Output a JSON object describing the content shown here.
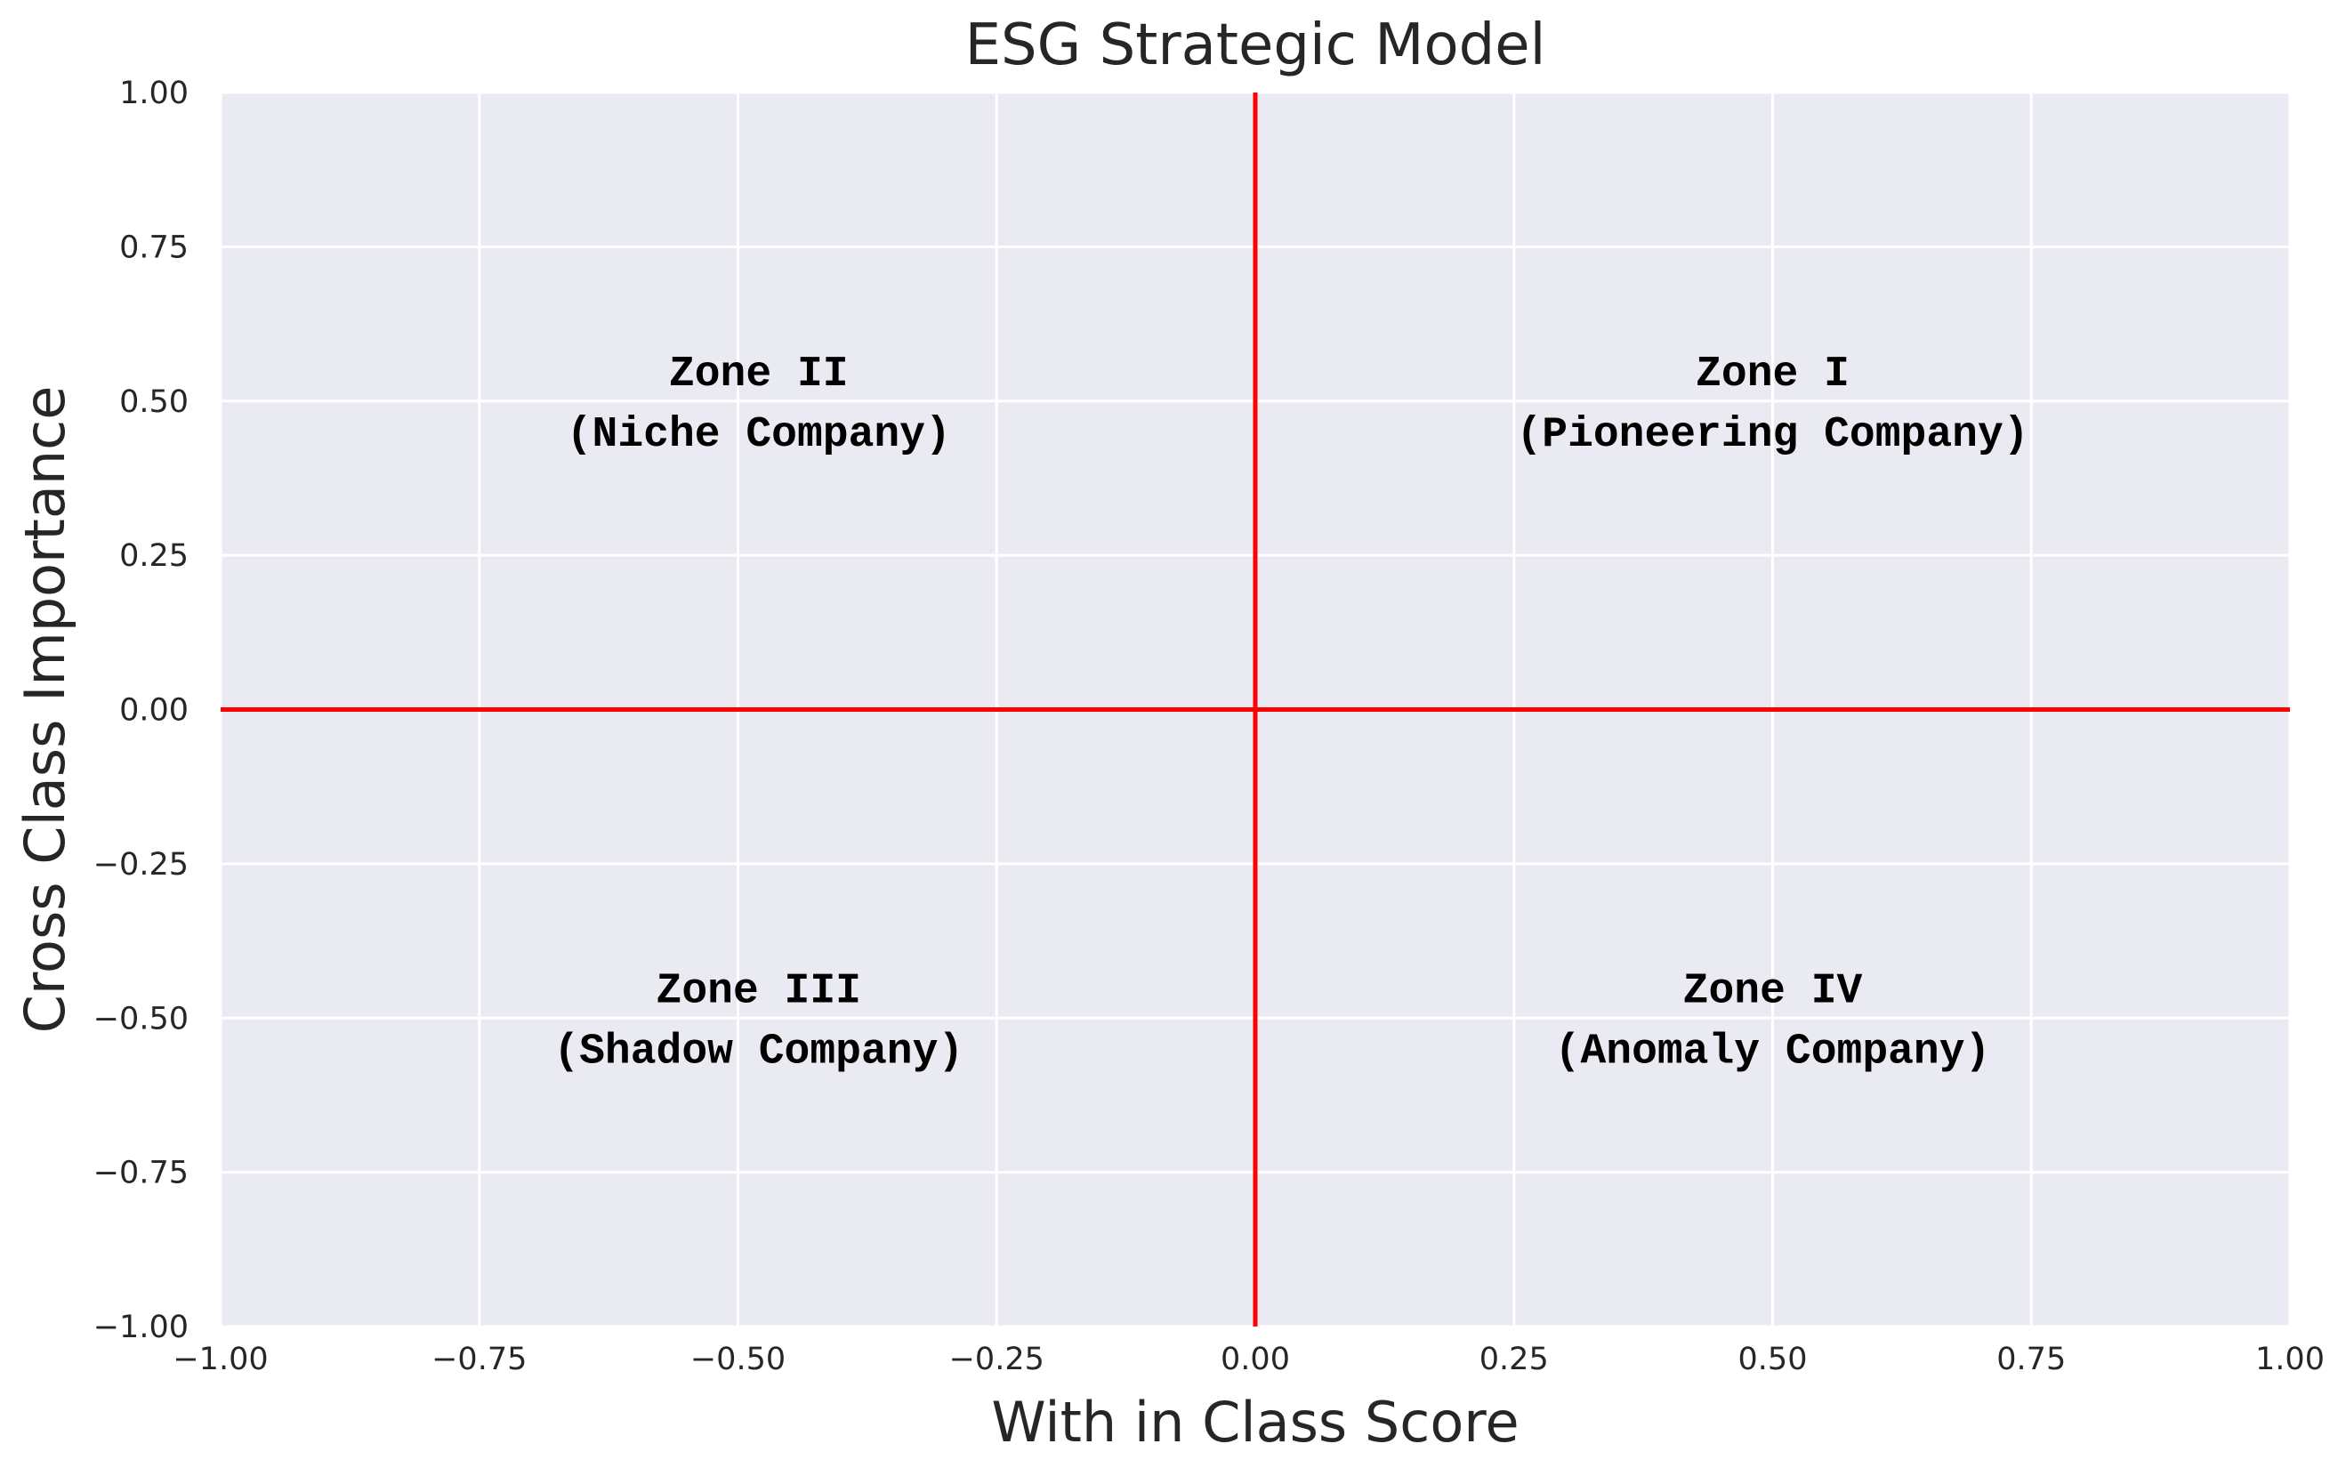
{
  "chart_data": {
    "type": "scatter",
    "title": "ESG Strategic Model",
    "xlabel": "With in Class Score",
    "ylabel": "Cross Class Importance",
    "xlim": [
      -1.0,
      1.0
    ],
    "ylim": [
      -1.0,
      1.0
    ],
    "xticks": [
      -1.0,
      -0.75,
      -0.5,
      -0.25,
      0.0,
      0.25,
      0.5,
      0.75,
      1.0
    ],
    "yticks": [
      -1.0,
      -0.75,
      -0.5,
      -0.25,
      0.0,
      0.25,
      0.5,
      0.75,
      1.0
    ],
    "xtick_labels": [
      "−1.00",
      "−0.75",
      "−0.50",
      "−0.25",
      "0.00",
      "0.25",
      "0.50",
      "0.75",
      "1.00"
    ],
    "ytick_labels": [
      "−1.00",
      "−0.75",
      "−0.50",
      "−0.25",
      "0.00",
      "0.25",
      "0.50",
      "0.75",
      "1.00"
    ],
    "grid": true,
    "background_color": "#eaeaf2",
    "grid_color": "#ffffff",
    "reference_line_color": "#ff0000",
    "reference_lines": [
      {
        "orientation": "vertical",
        "value": 0.0
      },
      {
        "orientation": "horizontal",
        "value": 0.0
      }
    ],
    "annotations": [
      {
        "x": 0.5,
        "y": 0.5,
        "lines": [
          "Zone I",
          "(Pioneering Company)"
        ]
      },
      {
        "x": -0.48,
        "y": 0.5,
        "lines": [
          "Zone II",
          "(Niche Company)"
        ]
      },
      {
        "x": -0.48,
        "y": -0.5,
        "lines": [
          "Zone III",
          "(Shadow Company)"
        ]
      },
      {
        "x": 0.5,
        "y": -0.5,
        "lines": [
          "Zone IV",
          "(Anomaly Company)"
        ]
      }
    ]
  }
}
